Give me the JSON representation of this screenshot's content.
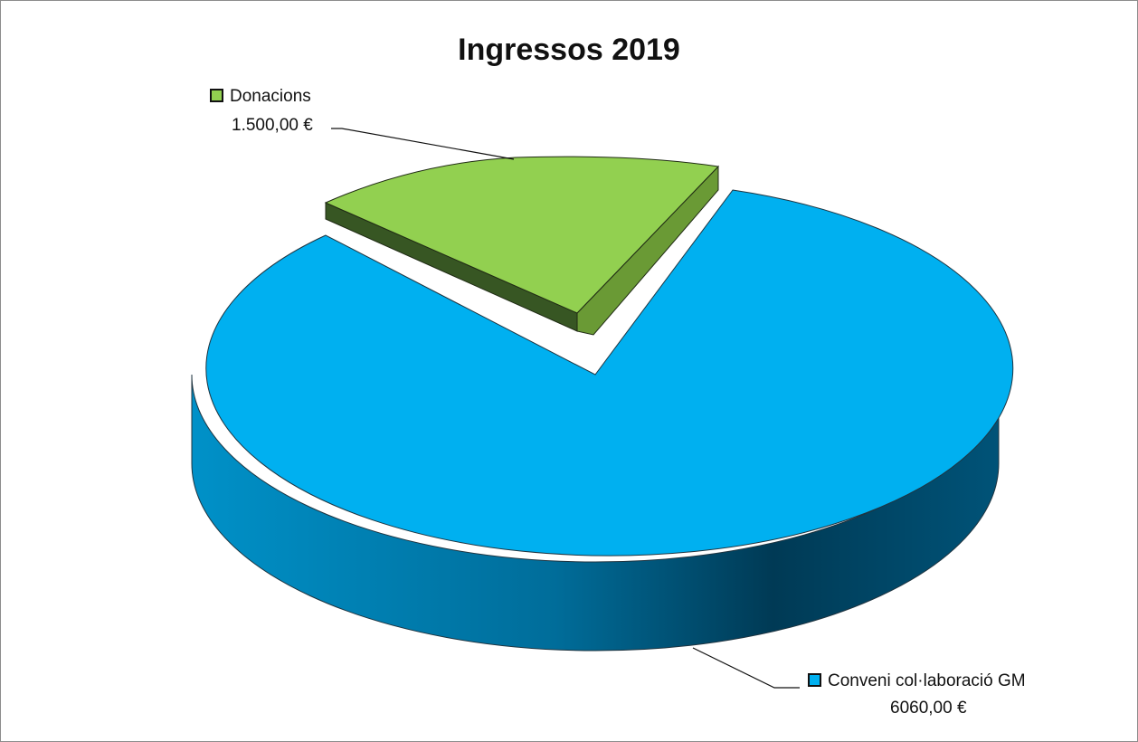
{
  "chart_data": {
    "type": "pie",
    "title": "Ingressos 2019",
    "slices": [
      {
        "label": "Donacions",
        "value": 1500.0,
        "value_label": "1.500,00 €",
        "color": "#92d050",
        "exploded": true
      },
      {
        "label": "Conveni col·laboració GM",
        "value": 6060.0,
        "value_label": "6060,00 €",
        "color": "#00b0f0",
        "exploded": false
      }
    ],
    "style": "3d",
    "legend": "none",
    "data_labels": "outside with leader lines"
  }
}
